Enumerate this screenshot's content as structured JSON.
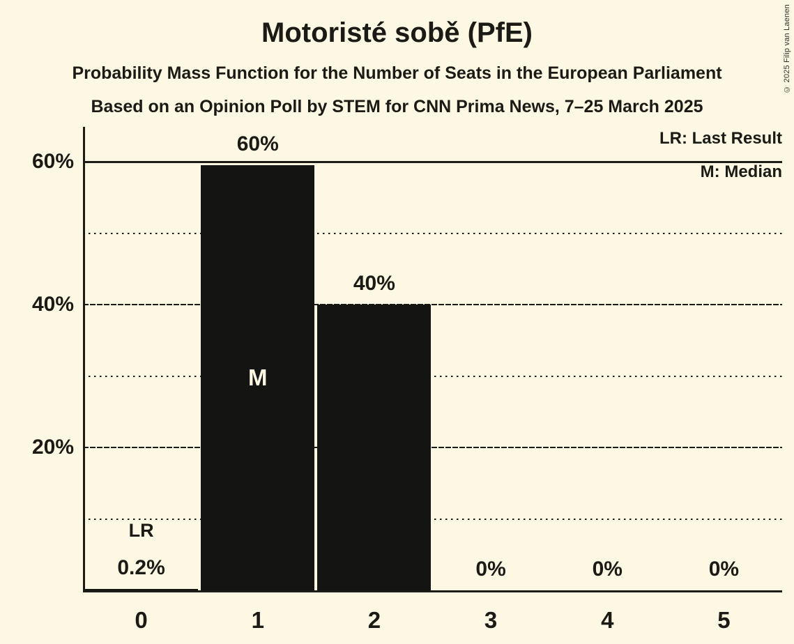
{
  "page": {
    "title": "Motoristé sobě (PfE)",
    "subtitle1": "Probability Mass Function for the Number of Seats in the European Parliament",
    "subtitle2": "Based on an Opinion Poll by STEM for CNN Prima News, 7–25 March 2025",
    "copyright": "© 2025 Filip van Laenen"
  },
  "legend": {
    "lr": "LR: Last Result",
    "m": "M: Median"
  },
  "colors": {
    "background": "#FCF8E3",
    "bar": "#141412",
    "ink": "#1B1A15",
    "median_label": "#FCF8E3"
  },
  "chart_data": {
    "type": "bar",
    "title": "Motoristé sobě (PfE)",
    "xlabel": "",
    "ylabel": "",
    "categories": [
      "0",
      "1",
      "2",
      "3",
      "4",
      "5"
    ],
    "values": [
      0.2,
      59.5,
      40,
      0,
      0,
      0
    ],
    "value_labels": [
      "0.2%",
      "60%",
      "40%",
      "0%",
      "0%",
      "0%"
    ],
    "annotations": {
      "median_category": "1",
      "median_label": "M",
      "last_result_category": "0",
      "last_result_label": "LR"
    },
    "ylim": [
      0,
      65
    ],
    "y_major_ticks": [
      {
        "pct": 20,
        "label": "20%",
        "style": "dashed"
      },
      {
        "pct": 40,
        "label": "40%",
        "style": "dashed"
      },
      {
        "pct": 60,
        "label": "60%",
        "style": "solid"
      }
    ],
    "y_minor_ticks": [
      {
        "pct": 10,
        "style": "dotted"
      },
      {
        "pct": 30,
        "style": "dotted"
      },
      {
        "pct": 50,
        "style": "dotted"
      }
    ],
    "grid": "major solid/dashed, minor dotted",
    "legend_position": "top-right"
  }
}
